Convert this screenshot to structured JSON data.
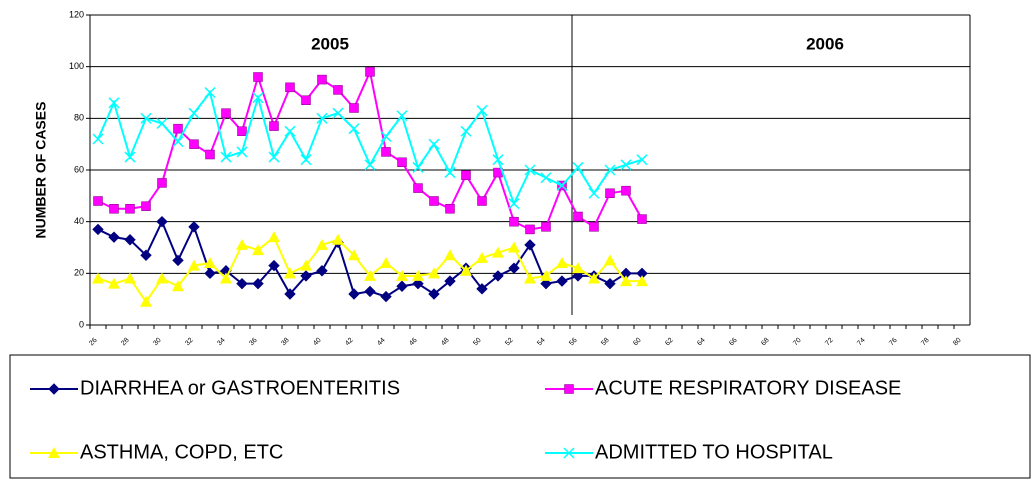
{
  "chart_data": {
    "type": "line",
    "y_label": "NUMBER OF CASES",
    "annotations": [
      "2005",
      "2006"
    ],
    "categories": [
      "26",
      null,
      "28",
      null,
      "30",
      null,
      "32",
      null,
      "34",
      null,
      "36",
      null,
      "38",
      null,
      "40",
      null,
      "42",
      null,
      "44",
      null,
      "46",
      null,
      "48",
      null,
      "50",
      null,
      "52",
      null,
      "54",
      null,
      "56",
      null,
      "58",
      null,
      "60",
      null,
      "62",
      null,
      "64",
      null,
      "66",
      null,
      "68",
      null,
      "70",
      null,
      "72",
      null,
      "74",
      null,
      "76",
      null,
      "78",
      null,
      "80"
    ],
    "series": [
      {
        "name": "DIARRHEA or GASTROENTERITIS",
        "color": "#000080",
        "marker": "diamond",
        "values": [
          37,
          34,
          33,
          27,
          40,
          25,
          38,
          20,
          21,
          16,
          16,
          23,
          12,
          19,
          21,
          32,
          12,
          13,
          11,
          15,
          16,
          12,
          17,
          22,
          14,
          19,
          22,
          31,
          16,
          17,
          19,
          19,
          16,
          20,
          20,
          null,
          null,
          null,
          null,
          null,
          null,
          null,
          null,
          null,
          null,
          null,
          null,
          null,
          null,
          null,
          null,
          null,
          null,
          null,
          null
        ]
      },
      {
        "name": "ACUTE RESPIRATORY DISEASE",
        "color": "#ff00ff",
        "marker": "square",
        "values": [
          48,
          45,
          45,
          46,
          55,
          76,
          70,
          66,
          82,
          75,
          96,
          77,
          92,
          87,
          95,
          91,
          84,
          98,
          67,
          63,
          53,
          48,
          45,
          58,
          48,
          59,
          40,
          37,
          38,
          54,
          42,
          38,
          51,
          52,
          41,
          null,
          null,
          null,
          null,
          null,
          null,
          null,
          null,
          null,
          null,
          null,
          null,
          null,
          null,
          null,
          null,
          null,
          null,
          null,
          null
        ]
      },
      {
        "name": "ASTHMA, COPD, ETC",
        "color": "#ffff00",
        "marker": "triangle",
        "values": [
          18,
          16,
          18,
          9,
          18,
          15,
          23,
          24,
          18,
          31,
          29,
          34,
          20,
          23,
          31,
          33,
          27,
          19,
          24,
          19,
          19,
          20,
          27,
          21,
          26,
          28,
          30,
          18,
          19,
          24,
          22,
          18,
          25,
          17,
          17,
          null,
          null,
          null,
          null,
          null,
          null,
          null,
          null,
          null,
          null,
          null,
          null,
          null,
          null,
          null,
          null,
          null,
          null,
          null,
          null
        ]
      },
      {
        "name": "ADMITTED TO HOSPITAL",
        "color": "#00ffff",
        "marker": "x",
        "values": [
          72,
          86,
          65,
          80,
          78,
          71,
          82,
          90,
          65,
          67,
          88,
          65,
          75,
          64,
          80,
          82,
          76,
          62,
          73,
          81,
          61,
          70,
          59,
          75,
          83,
          64,
          47,
          60,
          57,
          54,
          61,
          51,
          60,
          62,
          64,
          null,
          null,
          null,
          null,
          null,
          null,
          null,
          null,
          null,
          null,
          null,
          null,
          null,
          null,
          null,
          null,
          null,
          null,
          null,
          null
        ]
      }
    ],
    "ylim": [
      0,
      120
    ],
    "yticks": [
      0,
      20,
      40,
      60,
      80,
      100,
      120
    ],
    "grid": true
  }
}
